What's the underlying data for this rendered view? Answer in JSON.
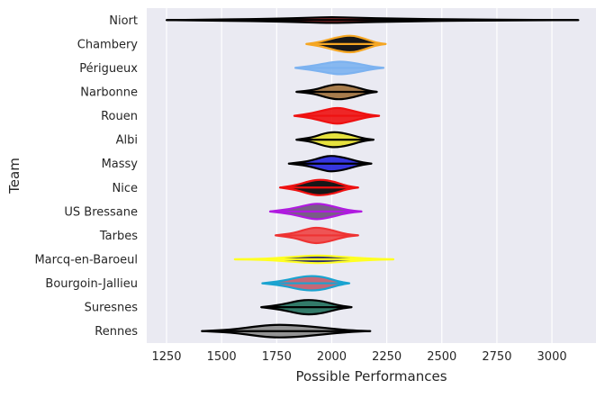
{
  "chart_data": {
    "type": "violin",
    "title": "",
    "xlabel": "Possible Performances",
    "ylabel": "Team",
    "xlim": [
      1160,
      3200
    ],
    "xticks": [
      1250,
      1500,
      1750,
      2000,
      2250,
      2500,
      2750,
      3000
    ],
    "grid": true,
    "legend": "none",
    "background": "#EAEAF2",
    "grid_color": "#FFFFFF",
    "series": [
      {
        "team": "Niort",
        "min": 1250,
        "max": 3120,
        "median": 2000,
        "outline": "#000000",
        "fill": "#8B1A1A",
        "profile": [
          [
            1250,
            0.0
          ],
          [
            1500,
            0.05
          ],
          [
            1750,
            0.12
          ],
          [
            1900,
            0.2
          ],
          [
            2000,
            0.25
          ],
          [
            2100,
            0.2
          ],
          [
            2300,
            0.12
          ],
          [
            2600,
            0.05
          ],
          [
            2900,
            0.02
          ],
          [
            3120,
            0.0
          ]
        ]
      },
      {
        "team": "Chambery",
        "min": 1885,
        "max": 2245,
        "median": 2090,
        "outline": "#F5A623",
        "fill": "#000000",
        "profile": [
          [
            1885,
            0.0
          ],
          [
            1950,
            0.18
          ],
          [
            2020,
            0.55
          ],
          [
            2090,
            0.75
          ],
          [
            2150,
            0.45
          ],
          [
            2200,
            0.12
          ],
          [
            2245,
            0.0
          ]
        ]
      },
      {
        "team": "Périgueux",
        "min": 1835,
        "max": 2235,
        "median": 2040,
        "outline": "#7CB2F0",
        "fill": "#7CB2F0",
        "profile": [
          [
            1835,
            0.0
          ],
          [
            1920,
            0.2
          ],
          [
            1990,
            0.45
          ],
          [
            2040,
            0.55
          ],
          [
            2100,
            0.42
          ],
          [
            2180,
            0.12
          ],
          [
            2235,
            0.0
          ]
        ]
      },
      {
        "team": "Narbonne",
        "min": 1840,
        "max": 2205,
        "median": 2040,
        "outline": "#000000",
        "fill": "#A0703A",
        "profile": [
          [
            1840,
            0.0
          ],
          [
            1920,
            0.15
          ],
          [
            1990,
            0.55
          ],
          [
            2040,
            0.65
          ],
          [
            2100,
            0.45
          ],
          [
            2160,
            0.12
          ],
          [
            2205,
            0.0
          ]
        ]
      },
      {
        "team": "Rouen",
        "min": 1830,
        "max": 2215,
        "median": 2030,
        "outline": "#EE1111",
        "fill": "#EE1111",
        "profile": [
          [
            1830,
            0.0
          ],
          [
            1910,
            0.2
          ],
          [
            1980,
            0.55
          ],
          [
            2030,
            0.7
          ],
          [
            2090,
            0.45
          ],
          [
            2160,
            0.12
          ],
          [
            2215,
            0.0
          ]
        ]
      },
      {
        "team": "Albi",
        "min": 1840,
        "max": 2190,
        "median": 2015,
        "outline": "#000000",
        "fill": "#E6E02A",
        "profile": [
          [
            1840,
            0.0
          ],
          [
            1910,
            0.18
          ],
          [
            1970,
            0.55
          ],
          [
            2015,
            0.65
          ],
          [
            2070,
            0.5
          ],
          [
            2140,
            0.12
          ],
          [
            2190,
            0.0
          ]
        ]
      },
      {
        "team": "Massy",
        "min": 1805,
        "max": 2180,
        "median": 2000,
        "outline": "#000000",
        "fill": "#2222DD",
        "profile": [
          [
            1805,
            0.0
          ],
          [
            1890,
            0.18
          ],
          [
            1960,
            0.55
          ],
          [
            2000,
            0.68
          ],
          [
            2060,
            0.5
          ],
          [
            2130,
            0.12
          ],
          [
            2180,
            0.0
          ]
        ]
      },
      {
        "team": "Nice",
        "min": 1765,
        "max": 2120,
        "median": 1950,
        "outline": "#EE1111",
        "fill": "#000000",
        "profile": [
          [
            1765,
            0.0
          ],
          [
            1840,
            0.2
          ],
          [
            1900,
            0.55
          ],
          [
            1950,
            0.68
          ],
          [
            2010,
            0.5
          ],
          [
            2070,
            0.12
          ],
          [
            2120,
            0.0
          ]
        ]
      },
      {
        "team": "US Bressane",
        "min": 1720,
        "max": 2135,
        "median": 1935,
        "outline": "#B01AE0",
        "fill": "#6B4E7A",
        "profile": [
          [
            1720,
            0.0
          ],
          [
            1810,
            0.2
          ],
          [
            1890,
            0.55
          ],
          [
            1935,
            0.68
          ],
          [
            1990,
            0.5
          ],
          [
            2070,
            0.12
          ],
          [
            2135,
            0.0
          ]
        ]
      },
      {
        "team": "Tarbes",
        "min": 1745,
        "max": 2120,
        "median": 1930,
        "outline": "#EE3333",
        "fill": "#EE4444",
        "profile": [
          [
            1745,
            0.0
          ],
          [
            1830,
            0.2
          ],
          [
            1890,
            0.55
          ],
          [
            1930,
            0.68
          ],
          [
            1990,
            0.5
          ],
          [
            2060,
            0.12
          ],
          [
            2120,
            0.0
          ]
        ]
      },
      {
        "team": "Marcq-en-Baroeul",
        "min": 1560,
        "max": 2280,
        "median": 1935,
        "outline": "#FFFF22",
        "fill": "#1A1A5E",
        "profile": [
          [
            1560,
            0.0
          ],
          [
            1700,
            0.05
          ],
          [
            1820,
            0.2
          ],
          [
            1935,
            0.35
          ],
          [
            2040,
            0.22
          ],
          [
            2160,
            0.06
          ],
          [
            2280,
            0.0
          ]
        ]
      },
      {
        "team": "Bourgoin-Jallieu",
        "min": 1685,
        "max": 2080,
        "median": 1915,
        "outline": "#1AA3D0",
        "fill": "#C05A6A",
        "profile": [
          [
            1685,
            0.0
          ],
          [
            1780,
            0.2
          ],
          [
            1860,
            0.55
          ],
          [
            1915,
            0.62
          ],
          [
            1970,
            0.5
          ],
          [
            2030,
            0.15
          ],
          [
            2080,
            0.0
          ]
        ]
      },
      {
        "team": "Suresnes",
        "min": 1680,
        "max": 2090,
        "median": 1900,
        "outline": "#000000",
        "fill": "#1E6E5A",
        "profile": [
          [
            1680,
            0.0
          ],
          [
            1770,
            0.2
          ],
          [
            1850,
            0.55
          ],
          [
            1900,
            0.62
          ],
          [
            1960,
            0.5
          ],
          [
            2030,
            0.15
          ],
          [
            2090,
            0.0
          ]
        ]
      },
      {
        "team": "Rennes",
        "min": 1410,
        "max": 2175,
        "median": 1760,
        "outline": "#000000",
        "fill": "#8A8A8A",
        "profile": [
          [
            1410,
            0.0
          ],
          [
            1550,
            0.12
          ],
          [
            1680,
            0.45
          ],
          [
            1760,
            0.55
          ],
          [
            1870,
            0.45
          ],
          [
            2000,
            0.2
          ],
          [
            2100,
            0.05
          ],
          [
            2175,
            0.0
          ]
        ]
      }
    ]
  }
}
